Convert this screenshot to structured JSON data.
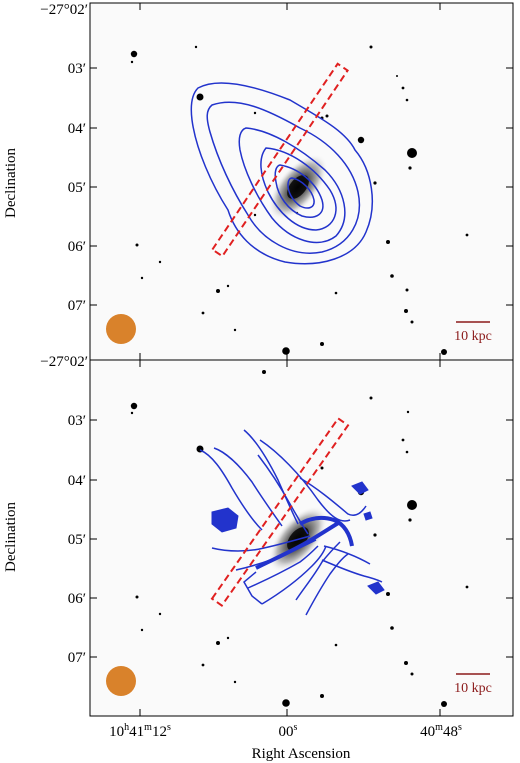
{
  "figure": {
    "panels": [
      {
        "id": "top",
        "y_tick_labels": [
          "−27°02′",
          "03′",
          "04′",
          "05′",
          "06′",
          "07′"
        ],
        "scalebar_label": "10 kpc",
        "contour_style": "intensity",
        "beam_color": "#d9822b"
      },
      {
        "id": "bottom",
        "y_tick_labels": [
          "−27°02′",
          "03′",
          "04′",
          "05′",
          "06′",
          "07′"
        ],
        "scalebar_label": "10 kpc",
        "contour_style": "velocity",
        "beam_color": "#d9822b"
      }
    ],
    "y_axis_label": "Declination",
    "x_axis_label": "Right Ascension",
    "x_tick_labels": [
      {
        "main": "10",
        "sup1": "h",
        "mid": "41",
        "sup2": "m",
        "end": "12",
        "sup3": "s"
      },
      {
        "main": "00",
        "sup1": "s"
      },
      {
        "main": "40",
        "sup1": "m",
        "mid": "48",
        "sup2": "s"
      }
    ],
    "colors": {
      "contour": "#2233cc",
      "slit": "#e02020",
      "scalebar": "#8b1a1a",
      "beam": "#d9822b"
    }
  }
}
